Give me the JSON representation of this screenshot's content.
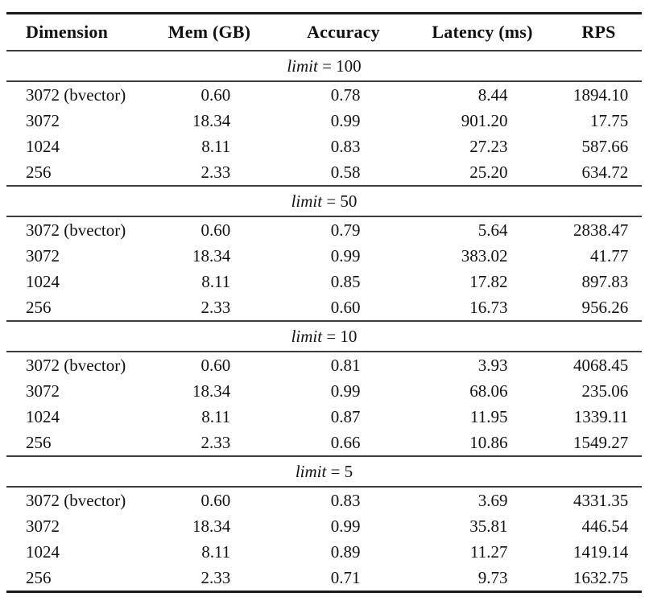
{
  "table": {
    "columns": [
      "Dimension",
      "Mem (GB)",
      "Accuracy",
      "Latency (ms)",
      "RPS"
    ],
    "sections": [
      {
        "var": "limit",
        "eq": "=",
        "value": "100",
        "rows": [
          [
            "3072 (bvector)",
            "0.60",
            "0.78",
            "8.44",
            "1894.10"
          ],
          [
            "3072",
            "18.34",
            "0.99",
            "901.20",
            "17.75"
          ],
          [
            "1024",
            "8.11",
            "0.83",
            "27.23",
            "587.66"
          ],
          [
            "256",
            "2.33",
            "0.58",
            "25.20",
            "634.72"
          ]
        ]
      },
      {
        "var": "limit",
        "eq": "=",
        "value": "50",
        "rows": [
          [
            "3072 (bvector)",
            "0.60",
            "0.79",
            "5.64",
            "2838.47"
          ],
          [
            "3072",
            "18.34",
            "0.99",
            "383.02",
            "41.77"
          ],
          [
            "1024",
            "8.11",
            "0.85",
            "17.82",
            "897.83"
          ],
          [
            "256",
            "2.33",
            "0.60",
            "16.73",
            "956.26"
          ]
        ]
      },
      {
        "var": "limit",
        "eq": "=",
        "value": "10",
        "rows": [
          [
            "3072 (bvector)",
            "0.60",
            "0.81",
            "3.93",
            "4068.45"
          ],
          [
            "3072",
            "18.34",
            "0.99",
            "68.06",
            "235.06"
          ],
          [
            "1024",
            "8.11",
            "0.87",
            "11.95",
            "1339.11"
          ],
          [
            "256",
            "2.33",
            "0.66",
            "10.86",
            "1549.27"
          ]
        ]
      },
      {
        "var": "limit",
        "eq": "=",
        "value": "5",
        "rows": [
          [
            "3072 (bvector)",
            "0.60",
            "0.83",
            "3.69",
            "4331.35"
          ],
          [
            "3072",
            "18.34",
            "0.99",
            "35.81",
            "446.54"
          ],
          [
            "1024",
            "8.11",
            "0.89",
            "11.27",
            "1419.14"
          ],
          [
            "256",
            "2.33",
            "0.71",
            "9.73",
            "1632.75"
          ]
        ]
      }
    ]
  },
  "chart_data": {
    "type": "table",
    "title": "",
    "columns": [
      "Dimension",
      "Mem (GB)",
      "Accuracy",
      "Latency (ms)",
      "RPS"
    ],
    "groups": [
      {
        "label": "limit = 100",
        "rows": [
          [
            "3072 (bvector)",
            0.6,
            0.78,
            8.44,
            1894.1
          ],
          [
            "3072",
            18.34,
            0.99,
            901.2,
            17.75
          ],
          [
            "1024",
            8.11,
            0.83,
            27.23,
            587.66
          ],
          [
            "256",
            2.33,
            0.58,
            25.2,
            634.72
          ]
        ]
      },
      {
        "label": "limit = 50",
        "rows": [
          [
            "3072 (bvector)",
            0.6,
            0.79,
            5.64,
            2838.47
          ],
          [
            "3072",
            18.34,
            0.99,
            383.02,
            41.77
          ],
          [
            "1024",
            8.11,
            0.85,
            17.82,
            897.83
          ],
          [
            "256",
            2.33,
            0.6,
            16.73,
            956.26
          ]
        ]
      },
      {
        "label": "limit = 10",
        "rows": [
          [
            "3072 (bvector)",
            0.6,
            0.81,
            3.93,
            4068.45
          ],
          [
            "3072",
            18.34,
            0.99,
            68.06,
            235.06
          ],
          [
            "1024",
            8.11,
            0.87,
            11.95,
            1339.11
          ],
          [
            "256",
            2.33,
            0.66,
            10.86,
            1549.27
          ]
        ]
      },
      {
        "label": "limit = 5",
        "rows": [
          [
            "3072 (bvector)",
            0.6,
            0.83,
            3.69,
            4331.35
          ],
          [
            "3072",
            18.34,
            0.99,
            35.81,
            446.54
          ],
          [
            "1024",
            8.11,
            0.89,
            11.27,
            1419.14
          ],
          [
            "256",
            2.33,
            0.71,
            9.73,
            1632.75
          ]
        ]
      }
    ]
  }
}
